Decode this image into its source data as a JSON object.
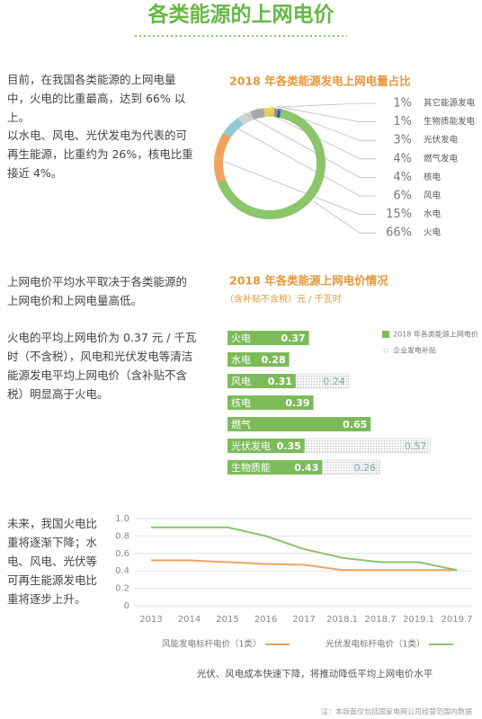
{
  "header": {
    "title": "各类能源的上网电价"
  },
  "sections": [
    "目前，在我国各类能源的上网电量中，火电的比重最高，达到 66% 以上。",
    "以水电、风电、光伏发电为代表的可再生能源，比重约为 26%，核电比重接近 4%。",
    "上网电价平均水平取决于各类能源的上网电价和上网电量高低。",
    "火电的平均上网电价为 0.37 元 / 千瓦时（不含税），风电和光伏发电等清洁能源发电平均上网电价（含补贴不含税）明显高于火电。",
    "未来，我国火电比重将逐渐下降；水电、风电、光伏等可再生能源发电比重将逐步上升。"
  ],
  "chart_data": [
    {
      "type": "pie",
      "title": "2018 年各类能源发电上网电量占比",
      "categories": [
        "其它能源发电",
        "生物质能发电",
        "光伏发电",
        "燃气发电",
        "核电",
        "风电",
        "水电",
        "火电"
      ],
      "values": [
        1,
        1,
        3,
        4,
        4,
        6,
        15,
        66
      ],
      "value_labels": [
        "1%",
        "1%",
        "3%",
        "4%",
        "4%",
        "6%",
        "15%",
        "66%"
      ],
      "colors": [
        "#2f5f9e",
        "#8a9399",
        "#f2cf4a",
        "#a8a8a8",
        "#d2d2d2",
        "#8ec9d8",
        "#f0a35e",
        "#8cc56a"
      ]
    },
    {
      "type": "bar",
      "title": "2018 年各类能源上网电价情况",
      "subtitle": "（含补贴不含税）元 / 千瓦时",
      "stacked": true,
      "categories": [
        "火电",
        "水电",
        "风电",
        "核电",
        "燃气",
        "光伏发电",
        "生物质能"
      ],
      "series": [
        {
          "name": "2018 年各类能源上网电价",
          "color": "#7dbb5a",
          "values": [
            0.37,
            0.28,
            0.31,
            0.39,
            0.65,
            0.35,
            0.43
          ]
        },
        {
          "name": "企业发电补贴",
          "color": "#b8b8b8",
          "values": [
            null,
            null,
            0.24,
            null,
            null,
            0.57,
            0.26
          ]
        }
      ]
    },
    {
      "type": "line",
      "caption": "光伏、风电成本快速下降，将推动降低平均上网电价水平",
      "categories": [
        "2013",
        "2014",
        "2015",
        "2016",
        "2017",
        "2018.1",
        "2018.7",
        "2019.1",
        "2019.7"
      ],
      "ylim": [
        0,
        1
      ],
      "yticks": [
        0,
        0.2,
        0.4,
        0.6,
        0.8,
        {
          "value": 1,
          "label": "1.0"
        }
      ],
      "grid": true,
      "series": [
        {
          "name": "风能发电标杆电价（1类）",
          "color": "#f0a35e",
          "values": [
            0.52,
            0.52,
            0.5,
            0.48,
            0.47,
            0.41,
            0.41,
            0.41,
            0.41
          ]
        },
        {
          "name": "光伏发电标杆电价（1类）",
          "color": "#8cc56a",
          "values": [
            0.9,
            0.9,
            0.9,
            0.8,
            0.65,
            0.55,
            0.5,
            0.5,
            0.41
          ]
        }
      ]
    }
  ],
  "footnote": "注：本版面仅包括国家电网公司经营范围内数据"
}
